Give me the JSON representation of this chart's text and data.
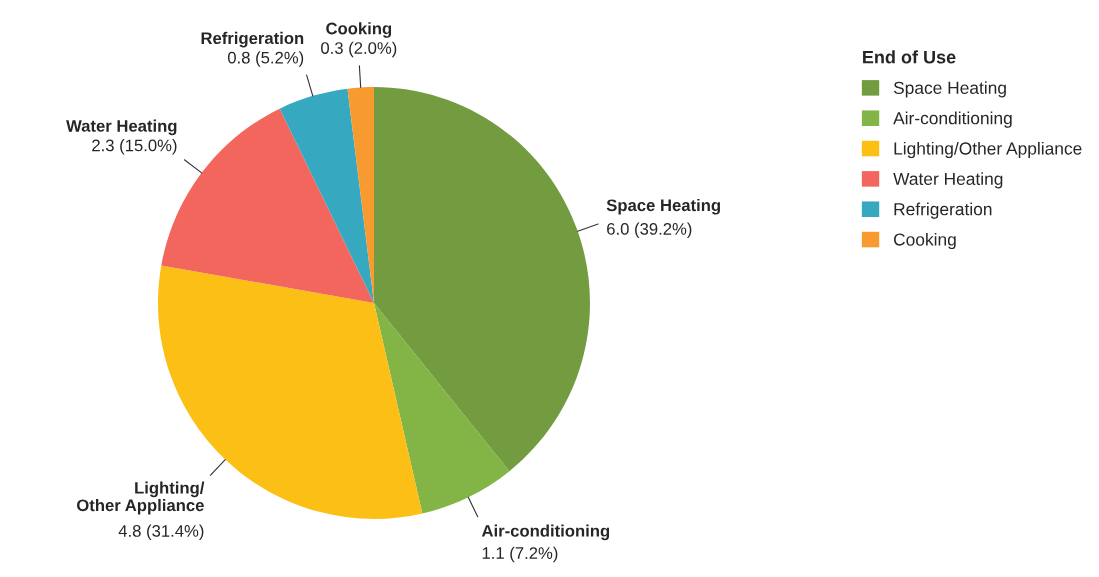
{
  "chart_data": {
    "type": "pie",
    "categories": [
      "Space Heating",
      "Air-conditioning",
      "Lighting/Other Appliance",
      "Water Heating",
      "Refrigeration",
      "Cooking"
    ],
    "values": [
      6.0,
      1.1,
      4.8,
      2.3,
      0.8,
      0.3
    ],
    "value_labels": [
      "6.0 (39.2%)",
      "1.1 (7.2%)",
      "4.8 (31.4%)",
      "2.3 (15.0%)",
      "0.8 (5.2%)",
      "0.3 (2.0%)"
    ],
    "colors": [
      "#739c41",
      "#82b446",
      "#fbbf16",
      "#f2665e",
      "#36a8c0",
      "#f79a2f"
    ],
    "legend_title": "End of Use",
    "legend": "right"
  }
}
